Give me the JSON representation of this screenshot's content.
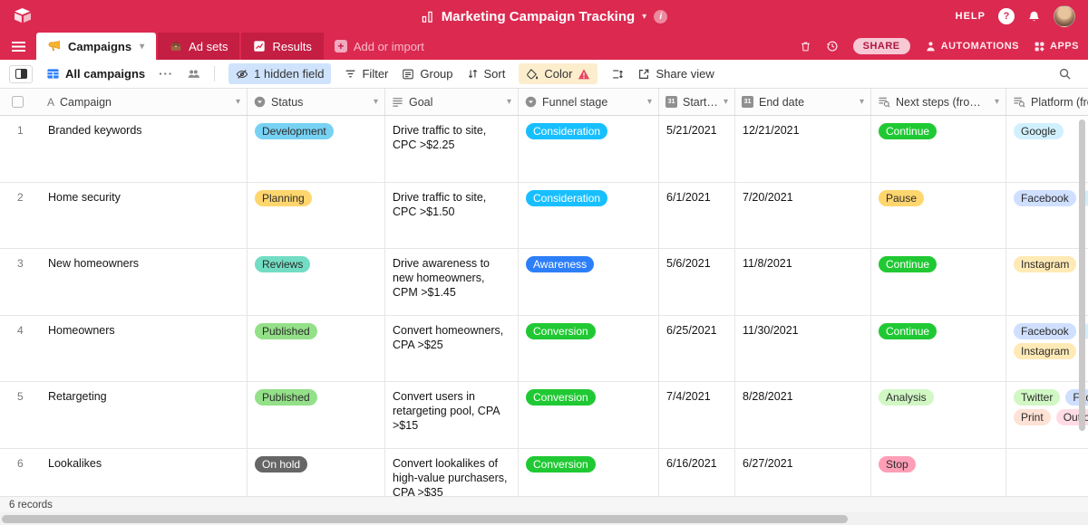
{
  "colors": {
    "header_red": "#dc2950",
    "tab_inactive_red": "#c51e43",
    "accent_blue": "#2d7ff9",
    "hidden_field_pill_bg": "#cfe3fc",
    "color_pill_bg": "#fcedcd",
    "warning_red": "#e8435c",
    "share_pill_bg": "#f6c9d5"
  },
  "topbar": {
    "title": "Marketing Campaign Tracking",
    "help_label": "HELP"
  },
  "tabbar": {
    "tabs": [
      {
        "label": "Campaigns",
        "icon": "megaphone-icon",
        "active": true
      },
      {
        "label": "Ad sets",
        "icon": "briefcase-icon",
        "active": false
      },
      {
        "label": "Results",
        "icon": "chart-icon",
        "active": false
      }
    ],
    "add_or_import_label": "Add or import",
    "share_label": "SHARE",
    "automations_label": "AUTOMATIONS",
    "apps_label": "APPS"
  },
  "toolbar": {
    "view_name": "All campaigns",
    "menu_dots": "···",
    "hidden_field_label": "1 hidden field",
    "filter_label": "Filter",
    "group_label": "Group",
    "sort_label": "Sort",
    "color_label": "Color",
    "share_view_label": "Share view"
  },
  "grid": {
    "columns": [
      {
        "label": "Campaign",
        "icon": "text-field-icon"
      },
      {
        "label": "Status",
        "icon": "single-select-icon"
      },
      {
        "label": "Goal",
        "icon": "long-text-icon"
      },
      {
        "label": "Funnel stage",
        "icon": "single-select-icon"
      },
      {
        "label": "Start date",
        "icon": "calendar-icon"
      },
      {
        "label": "End date",
        "icon": "calendar-icon"
      },
      {
        "label": "Next steps (from …",
        "icon": "lookup-icon"
      },
      {
        "label": "Platform (from …",
        "icon": "lookup-icon"
      }
    ],
    "rows": [
      {
        "num": "1",
        "campaign": "Branded keywords",
        "status": {
          "label": "Development",
          "bg": "#77d1f3",
          "fg": "#2b2b2b"
        },
        "goal": "Drive traffic to site, CPC >$2.25",
        "funnel": {
          "label": "Consideration",
          "bg": "#18bfff",
          "fg": "#ffffff"
        },
        "start": "5/21/2021",
        "end": "12/21/2021",
        "next": {
          "label": "Continue",
          "bg": "#20c933",
          "fg": "#ffffff"
        },
        "platforms": [
          {
            "label": "Google",
            "bg": "#d0f0fd",
            "fg": "#2b2b2b"
          }
        ]
      },
      {
        "num": "2",
        "campaign": "Home security",
        "status": {
          "label": "Planning",
          "bg": "#ffd66e",
          "fg": "#2b2b2b"
        },
        "goal": "Drive traffic to site, CPC >$1.50",
        "funnel": {
          "label": "Consideration",
          "bg": "#18bfff",
          "fg": "#ffffff"
        },
        "start": "6/1/2021",
        "end": "7/20/2021",
        "next": {
          "label": "Pause",
          "bg": "#ffd66e",
          "fg": "#2b2b2b"
        },
        "platforms": [
          {
            "label": "Facebook",
            "bg": "#cfdfff",
            "fg": "#2b2b2b"
          },
          {
            "label": "Google",
            "bg": "#d0f0fd",
            "fg": "#2b2b2b"
          }
        ]
      },
      {
        "num": "3",
        "campaign": "New homeowners",
        "status": {
          "label": "Reviews",
          "bg": "#72ddc3",
          "fg": "#2b2b2b"
        },
        "goal": "Drive awareness to new homeowners, CPM >$1.45",
        "funnel": {
          "label": "Awareness",
          "bg": "#2d7ff9",
          "fg": "#ffffff"
        },
        "start": "5/6/2021",
        "end": "11/8/2021",
        "next": {
          "label": "Continue",
          "bg": "#20c933",
          "fg": "#ffffff"
        },
        "platforms": [
          {
            "label": "Instagram",
            "bg": "#ffeab6",
            "fg": "#2b2b2b"
          }
        ]
      },
      {
        "num": "4",
        "campaign": "Homeowners",
        "status": {
          "label": "Published",
          "bg": "#93e088",
          "fg": "#2b2b2b"
        },
        "goal": "Convert homeowners, CPA >$25",
        "funnel": {
          "label": "Conversion",
          "bg": "#20c933",
          "fg": "#ffffff"
        },
        "start": "6/25/2021",
        "end": "11/30/2021",
        "next": {
          "label": "Continue",
          "bg": "#20c933",
          "fg": "#ffffff"
        },
        "platforms": [
          {
            "label": "Facebook",
            "bg": "#cfdfff",
            "fg": "#2b2b2b"
          },
          {
            "label": "Google",
            "bg": "#d0f0fd",
            "fg": "#2b2b2b"
          },
          {
            "label": "Instagram",
            "bg": "#ffeab6",
            "fg": "#2b2b2b"
          }
        ]
      },
      {
        "num": "5",
        "campaign": "Retargeting",
        "status": {
          "label": "Published",
          "bg": "#93e088",
          "fg": "#2b2b2b"
        },
        "goal": "Convert users in retargeting pool, CPA >$15",
        "funnel": {
          "label": "Conversion",
          "bg": "#20c933",
          "fg": "#ffffff"
        },
        "start": "7/4/2021",
        "end": "8/28/2021",
        "next": {
          "label": "Analysis",
          "bg": "#d1f7c4",
          "fg": "#2b2b2b"
        },
        "platforms": [
          {
            "label": "Twitter",
            "bg": "#d1f7c4",
            "fg": "#2b2b2b"
          },
          {
            "label": "Facebook",
            "bg": "#cfdfff",
            "fg": "#2b2b2b"
          },
          {
            "label": "Print",
            "bg": "#fee2d5",
            "fg": "#2b2b2b"
          },
          {
            "label": "Out of home",
            "bg": "#ffdce5",
            "fg": "#2b2b2b"
          }
        ]
      },
      {
        "num": "6",
        "campaign": "Lookalikes",
        "status": {
          "label": "On hold",
          "bg": "#666666",
          "fg": "#ffffff"
        },
        "goal": "Convert lookalikes of high-value purchasers, CPA >$35",
        "funnel": {
          "label": "Conversion",
          "bg": "#20c933",
          "fg": "#ffffff"
        },
        "start": "6/16/2021",
        "end": "6/27/2021",
        "next": {
          "label": "Stop",
          "bg": "#ff9eb7",
          "fg": "#2b2b2b"
        },
        "platforms": []
      }
    ]
  },
  "footer": {
    "records_label": "6 records"
  }
}
